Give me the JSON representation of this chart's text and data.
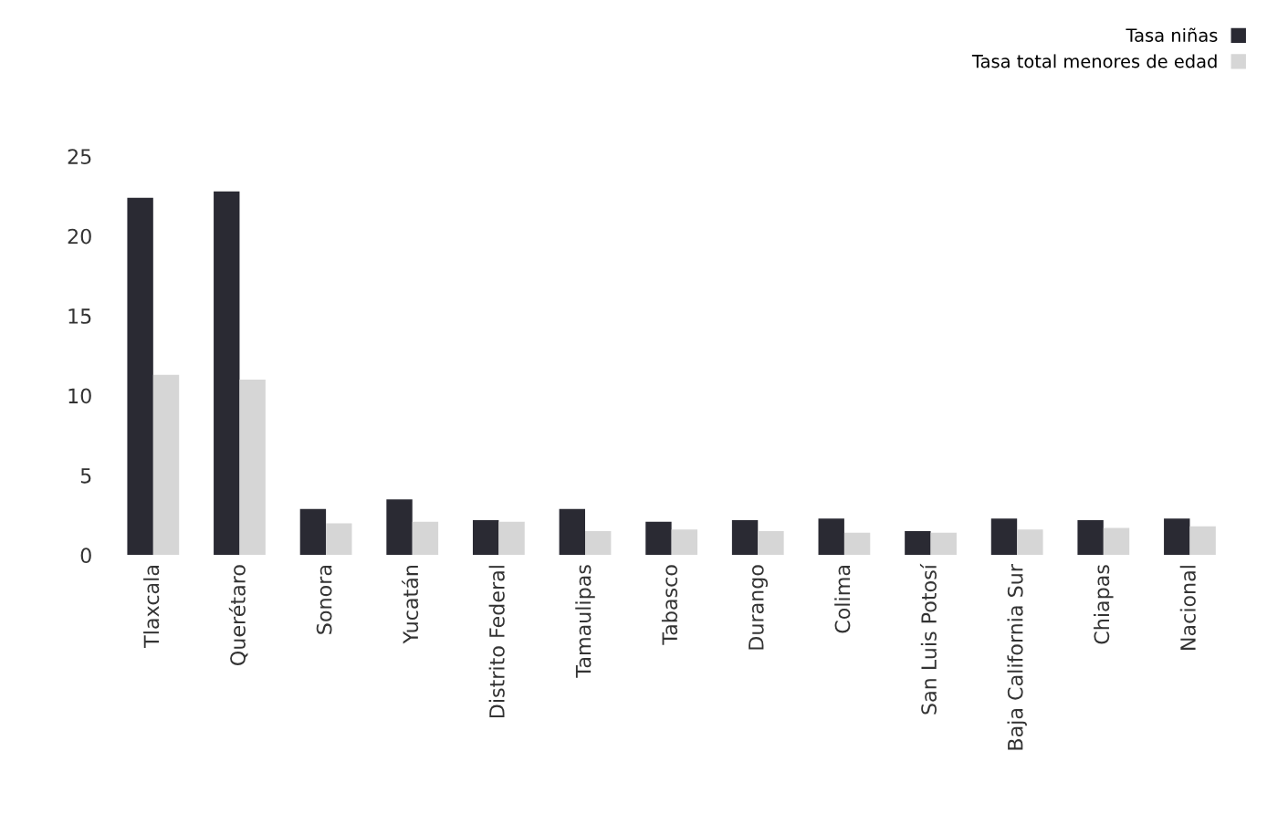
{
  "chart_data": {
    "type": "bar",
    "categories": [
      "Tlaxcala",
      "Querétaro",
      "Sonora",
      "Yucatán",
      "Distrito Federal",
      "Tamaulipas",
      "Tabasco",
      "Durango",
      "Colima",
      "San Luis Potosí",
      "Baja California Sur",
      "Chiapas",
      "Nacional"
    ],
    "series": [
      {
        "name": "Tasa niñas",
        "color": "#2a2a33",
        "values": [
          22.4,
          22.8,
          2.9,
          3.5,
          2.2,
          2.9,
          2.1,
          2.2,
          2.3,
          1.5,
          2.3,
          2.2,
          2.3
        ]
      },
      {
        "name": "Tasa total menores de edad",
        "color": "#d6d6d6",
        "values": [
          11.3,
          11.0,
          2.0,
          2.1,
          2.1,
          1.5,
          1.6,
          1.5,
          1.4,
          1.4,
          1.6,
          1.7,
          1.8
        ]
      }
    ],
    "ylim": [
      0,
      25
    ],
    "yticks": [
      0,
      5,
      10,
      15,
      20,
      25
    ],
    "grid": false,
    "legend": "top right"
  }
}
